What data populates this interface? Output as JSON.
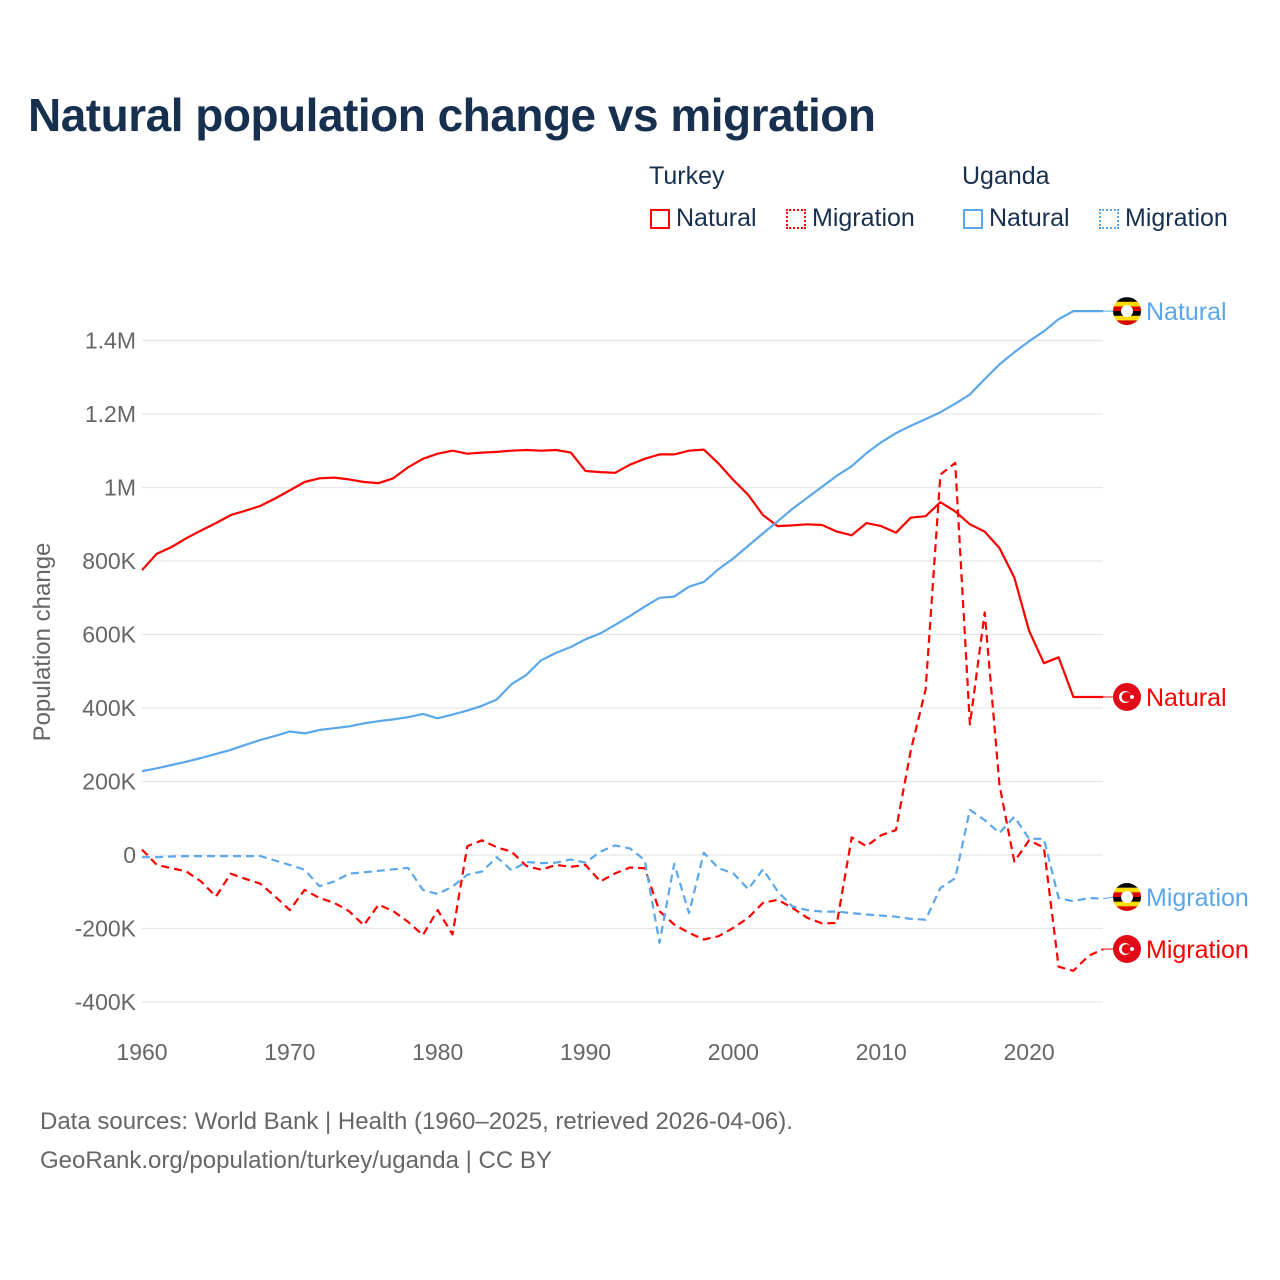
{
  "chart_data": {
    "type": "line",
    "title": "Natural population change vs migration",
    "ylabel": "Population change",
    "xlabel": "",
    "ylim": [
      -400000,
      1500000
    ],
    "xlim": [
      1960,
      2025
    ],
    "grid": true,
    "legend_position": "top-right",
    "y_ticks": [
      {
        "value": -400000,
        "label": "-400K"
      },
      {
        "value": -200000,
        "label": "-200K"
      },
      {
        "value": 0,
        "label": "0"
      },
      {
        "value": 200000,
        "label": "200K"
      },
      {
        "value": 400000,
        "label": "400K"
      },
      {
        "value": 600000,
        "label": "600K"
      },
      {
        "value": 800000,
        "label": "800K"
      },
      {
        "value": 1000000,
        "label": "1M"
      },
      {
        "value": 1200000,
        "label": "1.2M"
      },
      {
        "value": 1400000,
        "label": "1.4M"
      }
    ],
    "x_ticks": [
      {
        "value": 1960,
        "label": "1960"
      },
      {
        "value": 1970,
        "label": "1970"
      },
      {
        "value": 1980,
        "label": "1980"
      },
      {
        "value": 1990,
        "label": "1990"
      },
      {
        "value": 2000,
        "label": "2000"
      },
      {
        "value": 2010,
        "label": "2010"
      },
      {
        "value": 2020,
        "label": "2020"
      }
    ],
    "x_start": 1960,
    "units": "thousands",
    "series": [
      {
        "country": "Turkey",
        "name": "Natural",
        "color": "#ff0000",
        "dash": false,
        "end_label": "Natural",
        "values": [
          775,
          820,
          838,
          862,
          883,
          903,
          925,
          937,
          950,
          970,
          992,
          1015,
          1025,
          1027,
          1022,
          1015,
          1012,
          1025,
          1055,
          1078,
          1092,
          1100,
          1092,
          1095,
          1097,
          1100,
          1102,
          1100,
          1102,
          1095,
          1045,
          1042,
          1040,
          1062,
          1078,
          1090,
          1090,
          1100,
          1103,
          1065,
          1020,
          980,
          925,
          895,
          897,
          900,
          898,
          880,
          870,
          903,
          895,
          877,
          918,
          922,
          960,
          935,
          900,
          880,
          835,
          755,
          610,
          522,
          538,
          430,
          430,
          430
        ]
      },
      {
        "country": "Turkey",
        "name": "Migration",
        "color": "#ff0000",
        "dash": true,
        "end_label": "Migration",
        "values": [
          15,
          -27,
          -36,
          -45,
          -72,
          -113,
          -51,
          -65,
          -78,
          -113,
          -150,
          -95,
          -117,
          -130,
          -153,
          -191,
          -135,
          -153,
          -182,
          -218,
          -150,
          -216,
          24,
          40,
          21,
          9,
          -30,
          -40,
          -27,
          -32,
          -27,
          -72,
          -50,
          -34,
          -36,
          -153,
          -189,
          -212,
          -230,
          -221,
          -198,
          -171,
          -130,
          -122,
          -144,
          -171,
          -186,
          -185,
          48,
          24,
          54,
          68,
          285,
          450,
          1035,
          1067,
          355,
          660,
          190,
          -18,
          40,
          20,
          -304,
          -315,
          -275,
          -256
        ]
      },
      {
        "country": "Uganda",
        "name": "Natural",
        "color": "#5ba7eb",
        "dash": false,
        "end_label": "Natural",
        "values": [
          228,
          236,
          245,
          254,
          264,
          275,
          286,
          300,
          313,
          324,
          336,
          331,
          340,
          345,
          350,
          358,
          364,
          369,
          375,
          384,
          372,
          382,
          393,
          406,
          423,
          465,
          490,
          530,
          550,
          566,
          587,
          603,
          626,
          650,
          676,
          700,
          703,
          730,
          743,
          778,
          807,
          841,
          875,
          908,
          942,
          972,
          1002,
          1032,
          1058,
          1093,
          1123,
          1148,
          1168,
          1186,
          1205,
          1228,
          1253,
          1295,
          1335,
          1368,
          1398,
          1425,
          1458,
          1480,
          1480,
          1480
        ]
      },
      {
        "country": "Uganda",
        "name": "Migration",
        "color": "#5ba7eb",
        "dash": true,
        "end_label": "Migration",
        "values": [
          -6,
          -6,
          -4,
          -3,
          -3,
          -3,
          -3,
          -3,
          -3,
          -15,
          -27,
          -40,
          -85,
          -72,
          -51,
          -47,
          -43,
          -39,
          -35,
          -95,
          -106,
          -86,
          -54,
          -45,
          -6,
          -42,
          -19,
          -22,
          -21,
          -12,
          -21,
          9,
          26,
          18,
          -14,
          -239,
          -24,
          -158,
          6,
          -36,
          -50,
          -93,
          -39,
          -99,
          -140,
          -150,
          -154,
          -154,
          -158,
          -162,
          -165,
          -168,
          -174,
          -176,
          -90,
          -63,
          123,
          95,
          60,
          104,
          44,
          44,
          -117,
          -126,
          -117,
          -119
        ]
      }
    ]
  },
  "legend": {
    "groups": [
      {
        "label": "Turkey",
        "items": [
          "Natural",
          "Migration"
        ]
      },
      {
        "label": "Uganda",
        "items": [
          "Natural",
          "Migration"
        ]
      }
    ]
  },
  "footer": {
    "line1": "Data sources: World Bank | Health (1960–2025, retrieved 2026-04-06).",
    "line2": "GeoRank.org/population/turkey/uganda | CC BY"
  }
}
